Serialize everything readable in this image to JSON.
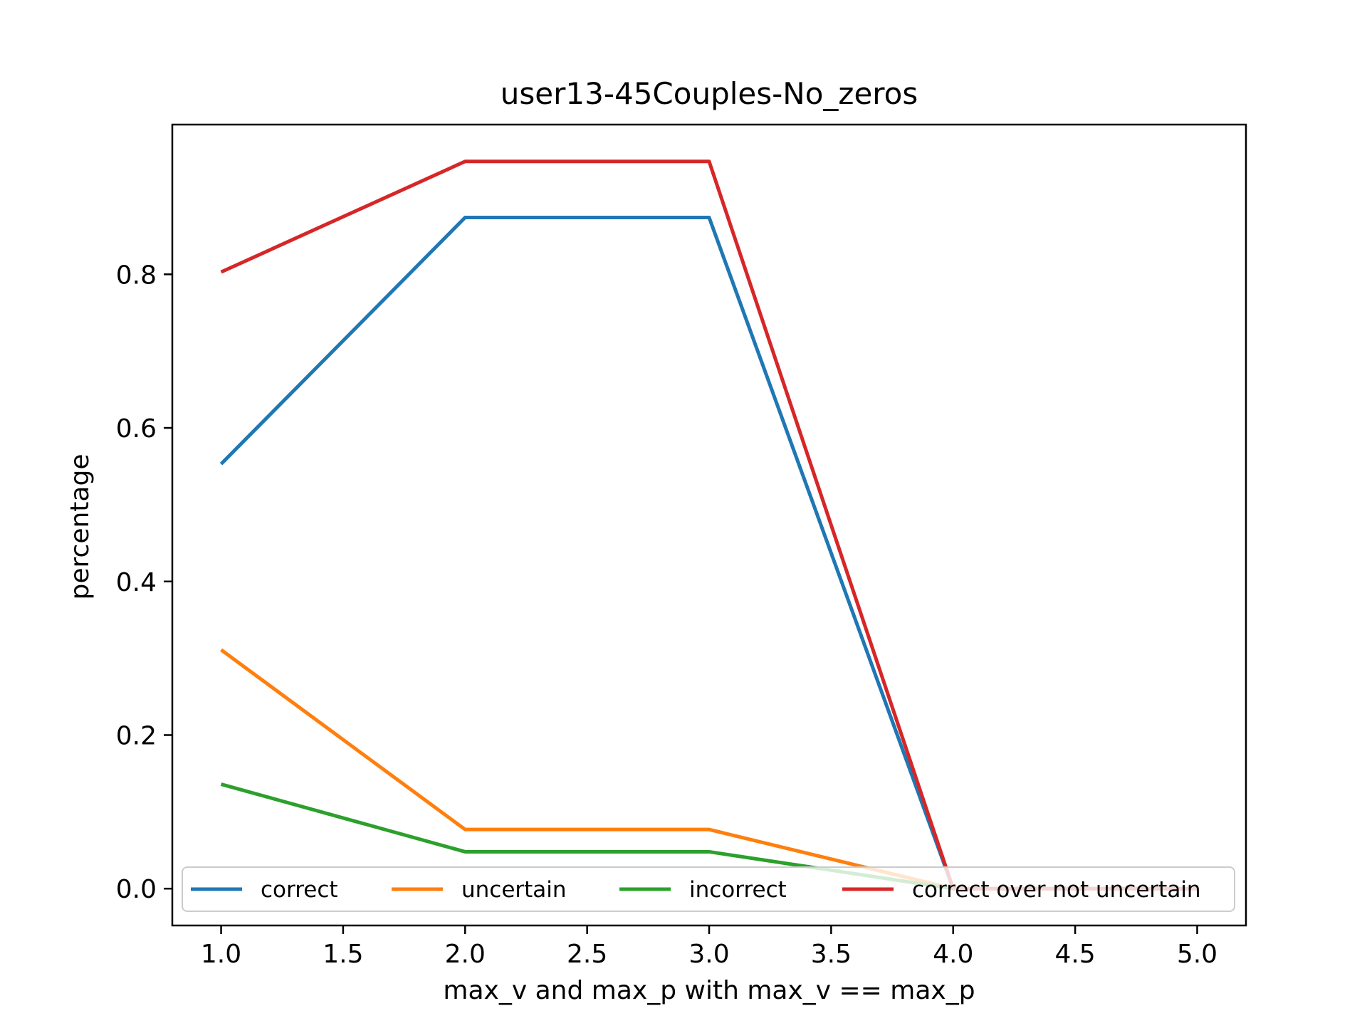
{
  "chart_data": {
    "type": "line",
    "title": "user13-45Couples-No_zeros",
    "xlabel": "max_v and max_p with max_v == max_p",
    "ylabel": "percentage",
    "x": [
      1,
      2,
      3,
      4,
      5
    ],
    "xlim": [
      0.8,
      5.2
    ],
    "ylim": [
      -0.048,
      0.995
    ],
    "xticks": [
      1.0,
      1.5,
      2.0,
      2.5,
      3.0,
      3.5,
      4.0,
      4.5,
      5.0
    ],
    "xtick_labels": [
      "1.0",
      "1.5",
      "2.0",
      "2.5",
      "3.0",
      "3.5",
      "4.0",
      "4.5",
      "5.0"
    ],
    "yticks": [
      0.0,
      0.2,
      0.4,
      0.6,
      0.8
    ],
    "ytick_labels": [
      "0.0",
      "0.2",
      "0.4",
      "0.6",
      "0.8"
    ],
    "grid": false,
    "legend_position": "bottom, inside axes, single row",
    "series": [
      {
        "name": "correct",
        "color": "#1f77b4",
        "values": [
          0.553,
          0.874,
          0.874,
          0.0,
          0.0
        ]
      },
      {
        "name": "uncertain",
        "color": "#ff7f0e",
        "values": [
          0.311,
          0.077,
          0.077,
          0.0,
          0.0
        ]
      },
      {
        "name": "incorrect",
        "color": "#2ca02c",
        "values": [
          0.136,
          0.048,
          0.048,
          0.0,
          0.0
        ]
      },
      {
        "name": "correct over not uncertain",
        "color": "#d62728",
        "values": [
          0.803,
          0.947,
          0.947,
          0.0,
          0.0
        ]
      }
    ]
  }
}
